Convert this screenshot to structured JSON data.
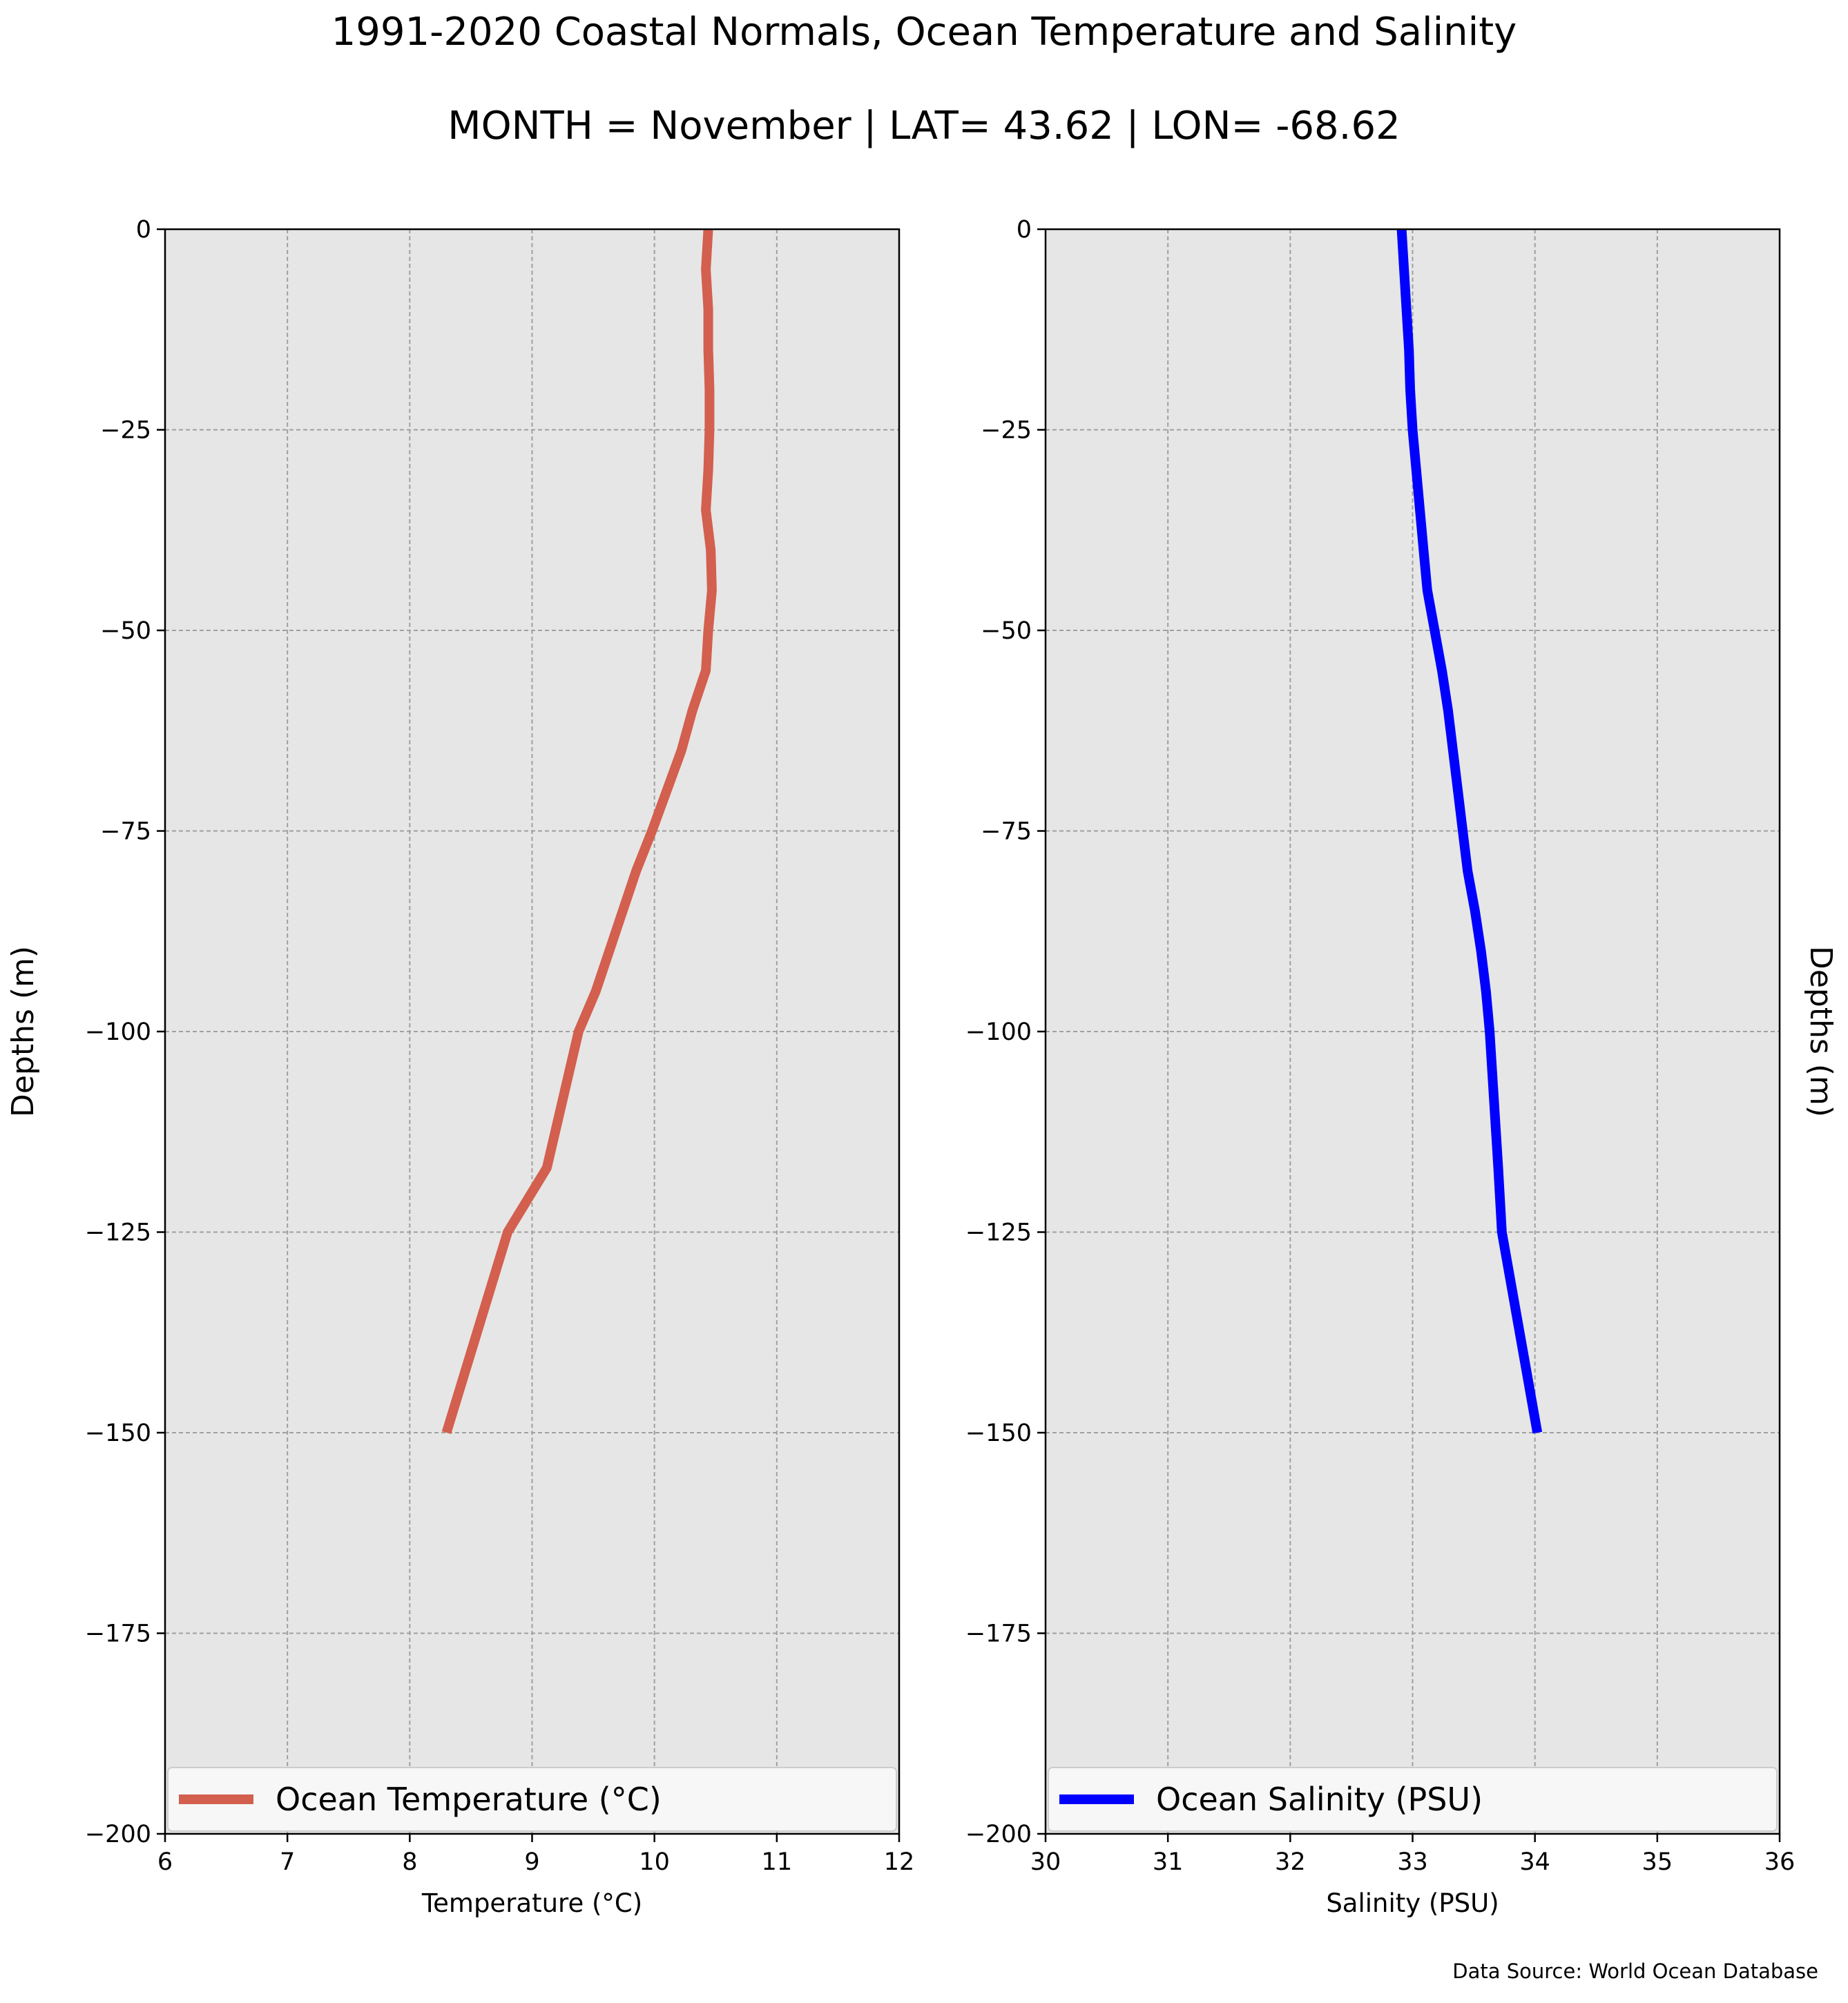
{
  "title": "1991-2020 Coastal Normals, Ocean Temperature and Salinity",
  "subtitle": "MONTH = November | LAT= 43.62 | LON= -68.62",
  "source_note": "Data Source: World Ocean Database",
  "colors": {
    "background": "#e6e6e6",
    "grid": "#a0a0a0",
    "temperature": "#d35f4e",
    "salinity": "#0000ff"
  },
  "chart_data": [
    {
      "type": "line",
      "title": "",
      "xlabel": "Temperature (°C)",
      "ylabel": "Depths (m)",
      "xlim": [
        6,
        12
      ],
      "ylim": [
        -200,
        0
      ],
      "xticks": [
        "6",
        "7",
        "8",
        "9",
        "10",
        "11",
        "12"
      ],
      "yticks": [
        "0",
        "−25",
        "−50",
        "−75",
        "−100",
        "−125",
        "−150",
        "−175",
        "−200"
      ],
      "grid": true,
      "legend_position": "lower-center",
      "series": [
        {
          "name": "Ocean Temperature (°C)",
          "x": [
            10.44,
            10.42,
            10.44,
            10.44,
            10.45,
            10.45,
            10.44,
            10.42,
            10.46,
            10.47,
            10.44,
            10.42,
            10.31,
            10.22,
            10.1,
            9.98,
            9.85,
            9.74,
            9.63,
            9.52,
            9.38,
            9.12,
            8.8,
            8.3
          ],
          "y": [
            0,
            -5,
            -10,
            -15,
            -20,
            -25,
            -30,
            -35,
            -40,
            -45,
            -50,
            -55,
            -60,
            -65,
            -70,
            -75,
            -80,
            -85,
            -90,
            -95,
            -100,
            -117,
            -125,
            -150
          ]
        }
      ]
    },
    {
      "type": "line",
      "title": "",
      "xlabel": "Salinity (PSU)",
      "ylabel": "Depths (m)",
      "xlim": [
        30,
        36
      ],
      "ylim": [
        -200,
        0
      ],
      "xticks": [
        "30",
        "31",
        "32",
        "33",
        "34",
        "35",
        "36"
      ],
      "yticks": [
        "0",
        "−25",
        "−50",
        "−75",
        "−100",
        "−125",
        "−150",
        "−175",
        "−200"
      ],
      "grid": true,
      "legend_position": "lower-center",
      "series": [
        {
          "name": "Ocean Salinity (PSU)",
          "x": [
            32.91,
            32.93,
            32.95,
            32.97,
            32.98,
            33.0,
            33.03,
            33.06,
            33.09,
            33.12,
            33.18,
            33.24,
            33.29,
            33.33,
            33.37,
            33.41,
            33.45,
            33.51,
            33.56,
            33.6,
            33.63,
            33.7,
            33.73,
            34.02
          ],
          "y": [
            0,
            -5,
            -10,
            -15,
            -20,
            -25,
            -30,
            -35,
            -40,
            -45,
            -50,
            -55,
            -60,
            -65,
            -70,
            -75,
            -80,
            -85,
            -90,
            -95,
            -100,
            -117,
            -125,
            -150
          ]
        }
      ]
    }
  ]
}
